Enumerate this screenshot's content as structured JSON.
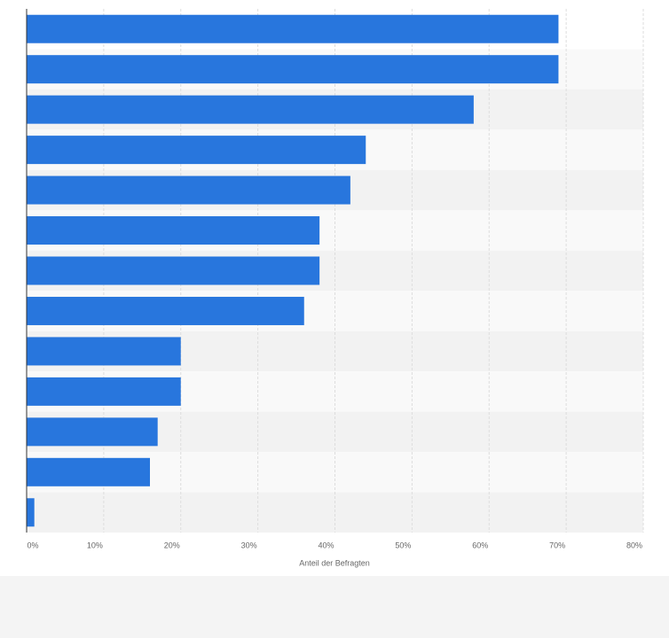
{
  "chart_data": {
    "type": "bar",
    "orientation": "horizontal",
    "xlabel": "Anteil der Befragten",
    "categories": [
      null,
      null,
      null,
      null,
      null,
      null,
      null,
      null,
      null,
      null,
      null,
      null,
      null
    ],
    "values": [
      69,
      69,
      58,
      44,
      42,
      38,
      38,
      36,
      20,
      20,
      17,
      16,
      1
    ],
    "color": "#2876dd",
    "xlim": [
      0,
      80
    ],
    "xticks": [
      {
        "value": 0,
        "label": "0%"
      },
      {
        "value": 10,
        "label": "10%"
      },
      {
        "value": 20,
        "label": "20%"
      },
      {
        "value": 30,
        "label": "30%"
      },
      {
        "value": 40,
        "label": "40%"
      },
      {
        "value": 50,
        "label": "50%"
      },
      {
        "value": 60,
        "label": "60%"
      },
      {
        "value": 70,
        "label": "70%"
      },
      {
        "value": 80,
        "label": "80%"
      }
    ],
    "grid": true
  }
}
